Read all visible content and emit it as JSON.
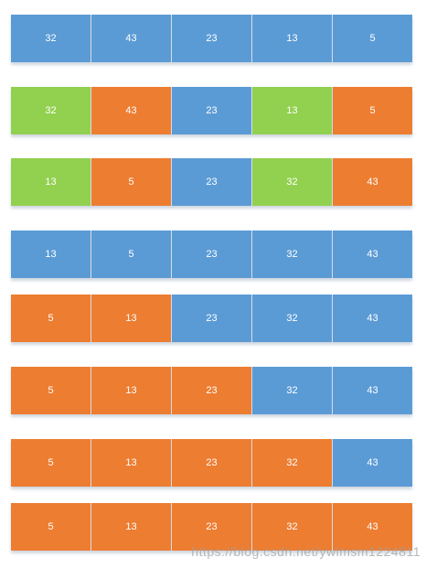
{
  "colors": {
    "blue": "#5b9bd5",
    "green": "#92d050",
    "orange": "#ed7d31"
  },
  "rows": [
    {
      "cells": [
        {
          "value": "32",
          "color": "blue"
        },
        {
          "value": "43",
          "color": "blue"
        },
        {
          "value": "23",
          "color": "blue"
        },
        {
          "value": "13",
          "color": "blue"
        },
        {
          "value": "5",
          "color": "blue"
        }
      ]
    },
    {
      "cells": [
        {
          "value": "32",
          "color": "green"
        },
        {
          "value": "43",
          "color": "orange"
        },
        {
          "value": "23",
          "color": "blue"
        },
        {
          "value": "13",
          "color": "green"
        },
        {
          "value": "5",
          "color": "orange"
        }
      ]
    },
    {
      "cells": [
        {
          "value": "13",
          "color": "green"
        },
        {
          "value": "5",
          "color": "orange"
        },
        {
          "value": "23",
          "color": "blue"
        },
        {
          "value": "32",
          "color": "green"
        },
        {
          "value": "43",
          "color": "orange"
        }
      ]
    },
    {
      "cells": [
        {
          "value": "13",
          "color": "blue"
        },
        {
          "value": "5",
          "color": "blue"
        },
        {
          "value": "23",
          "color": "blue"
        },
        {
          "value": "32",
          "color": "blue"
        },
        {
          "value": "43",
          "color": "blue"
        }
      ]
    },
    {
      "cells": [
        {
          "value": "5",
          "color": "orange"
        },
        {
          "value": "13",
          "color": "orange"
        },
        {
          "value": "23",
          "color": "blue"
        },
        {
          "value": "32",
          "color": "blue"
        },
        {
          "value": "43",
          "color": "blue"
        }
      ]
    },
    {
      "cells": [
        {
          "value": "5",
          "color": "orange"
        },
        {
          "value": "13",
          "color": "orange"
        },
        {
          "value": "23",
          "color": "orange"
        },
        {
          "value": "32",
          "color": "blue"
        },
        {
          "value": "43",
          "color": "blue"
        }
      ]
    },
    {
      "cells": [
        {
          "value": "5",
          "color": "orange"
        },
        {
          "value": "13",
          "color": "orange"
        },
        {
          "value": "23",
          "color": "orange"
        },
        {
          "value": "32",
          "color": "orange"
        },
        {
          "value": "43",
          "color": "blue"
        }
      ]
    },
    {
      "cells": [
        {
          "value": "5",
          "color": "orange"
        },
        {
          "value": "13",
          "color": "orange"
        },
        {
          "value": "23",
          "color": "orange"
        },
        {
          "value": "32",
          "color": "orange"
        },
        {
          "value": "43",
          "color": "orange"
        }
      ]
    }
  ],
  "watermark": "https://blog.csdn.net/ywlmsm1224811"
}
